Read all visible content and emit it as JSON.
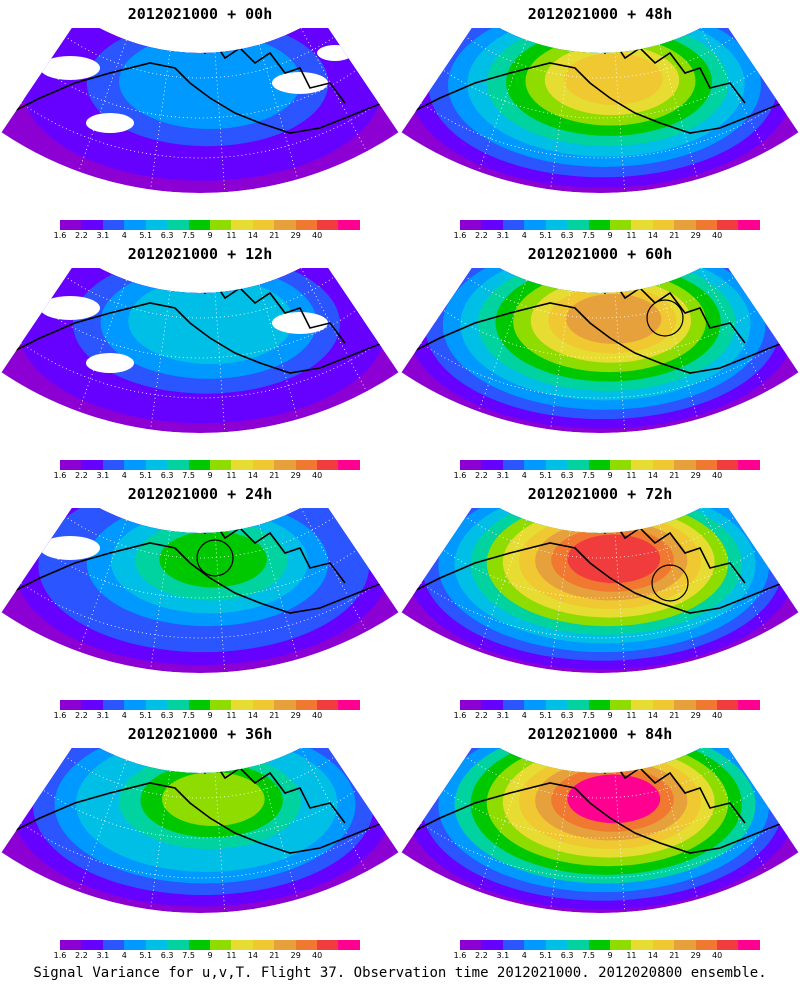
{
  "panels": [
    {
      "title": "2012021000 + 00h",
      "intensity": 0.25,
      "circles": 0
    },
    {
      "title": "2012021000 + 48h",
      "intensity": 0.7,
      "circles": 0
    },
    {
      "title": "2012021000 + 12h",
      "intensity": 0.35,
      "circles": 0
    },
    {
      "title": "2012021000 + 60h",
      "intensity": 0.78,
      "circles": 1
    },
    {
      "title": "2012021000 + 24h",
      "intensity": 0.45,
      "circles": 1
    },
    {
      "title": "2012021000 + 72h",
      "intensity": 0.85,
      "circles": 1
    },
    {
      "title": "2012021000 + 36h",
      "intensity": 0.55,
      "circles": 0
    },
    {
      "title": "2012021000 + 84h",
      "intensity": 0.92,
      "circles": 0
    }
  ],
  "colorbar": {
    "colors": [
      "#8c00d4",
      "#6600ff",
      "#2a55ff",
      "#0099ff",
      "#00bfe6",
      "#00d2a0",
      "#00c800",
      "#8fdc00",
      "#e6dc32",
      "#f0c832",
      "#e6a03c",
      "#f07830",
      "#f03c3c",
      "#ff0090"
    ],
    "labels": [
      "1.6",
      "2.2",
      "3.1",
      "4",
      "5.1",
      "6.3",
      "7.5",
      "9",
      "11",
      "14",
      "21",
      "29",
      "40"
    ]
  },
  "caption": "Signal Variance for u,v,T. Flight 37. Observation time 2012021000. 2012020800 ensemble."
}
